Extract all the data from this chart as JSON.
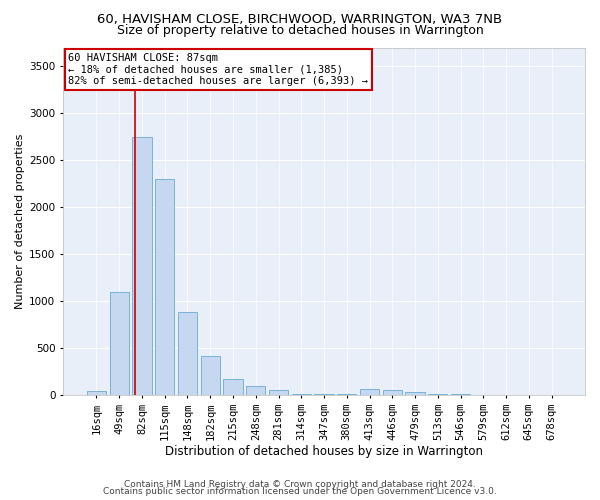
{
  "title1": "60, HAVISHAM CLOSE, BIRCHWOOD, WARRINGTON, WA3 7NB",
  "title2": "Size of property relative to detached houses in Warrington",
  "xlabel": "Distribution of detached houses by size in Warrington",
  "ylabel": "Number of detached properties",
  "footnote1": "Contains HM Land Registry data © Crown copyright and database right 2024.",
  "footnote2": "Contains public sector information licensed under the Open Government Licence v3.0.",
  "annotation_title": "60 HAVISHAM CLOSE: 87sqm",
  "annotation_line1": "← 18% of detached houses are smaller (1,385)",
  "annotation_line2": "82% of semi-detached houses are larger (6,393) →",
  "bar_color": "#c5d8f0",
  "bar_edge_color": "#6aaad4",
  "redline_color": "#cc0000",
  "annotation_box_edge_color": "#cc0000",
  "categories": [
    "16sqm",
    "49sqm",
    "82sqm",
    "115sqm",
    "148sqm",
    "182sqm",
    "215sqm",
    "248sqm",
    "281sqm",
    "314sqm",
    "347sqm",
    "380sqm",
    "413sqm",
    "446sqm",
    "479sqm",
    "513sqm",
    "546sqm",
    "579sqm",
    "612sqm",
    "645sqm",
    "678sqm"
  ],
  "values": [
    45,
    1100,
    2750,
    2300,
    880,
    420,
    170,
    100,
    50,
    18,
    12,
    8,
    65,
    55,
    38,
    18,
    8,
    4,
    3,
    2,
    2
  ],
  "ylim": [
    0,
    3700
  ],
  "yticks": [
    0,
    500,
    1000,
    1500,
    2000,
    2500,
    3000,
    3500
  ],
  "redline_x": 1.68,
  "background_color": "#e8eff8",
  "grid_color": "#ffffff",
  "title1_fontsize": 9.5,
  "title2_fontsize": 9,
  "xlabel_fontsize": 8.5,
  "ylabel_fontsize": 8,
  "tick_fontsize": 7.5,
  "annotation_fontsize": 7.5,
  "footnote_fontsize": 6.5
}
